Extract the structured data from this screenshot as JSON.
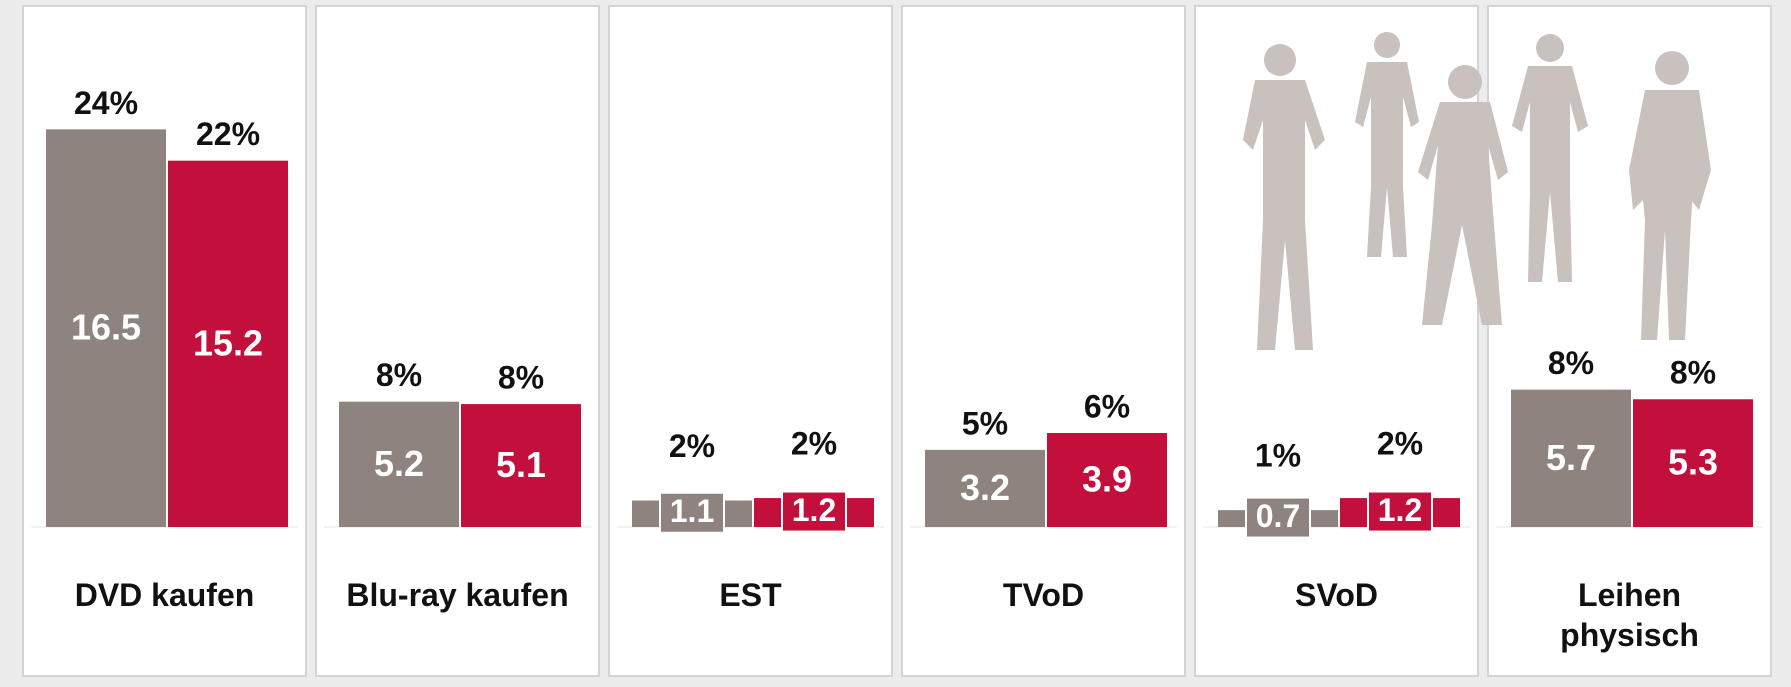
{
  "chart_data": {
    "type": "bar",
    "categories": [
      "DVD kaufen",
      "Blu-ray kaufen",
      "EST",
      "TVoD",
      "SVoD",
      "Leihen\nphysisch"
    ],
    "series": [
      {
        "color": "#8f837f",
        "values": [
          16.5,
          5.2,
          1.1,
          3.2,
          0.7,
          5.7
        ],
        "share_labels": [
          "24%",
          "8%",
          "2%",
          "5%",
          "1%",
          "8%"
        ]
      },
      {
        "color": "#c20f3b",
        "values": [
          15.2,
          5.1,
          1.2,
          3.9,
          1.2,
          5.3
        ],
        "share_labels": [
          "22%",
          "8%",
          "2%",
          "6%",
          "2%",
          "8%"
        ]
      }
    ]
  }
}
